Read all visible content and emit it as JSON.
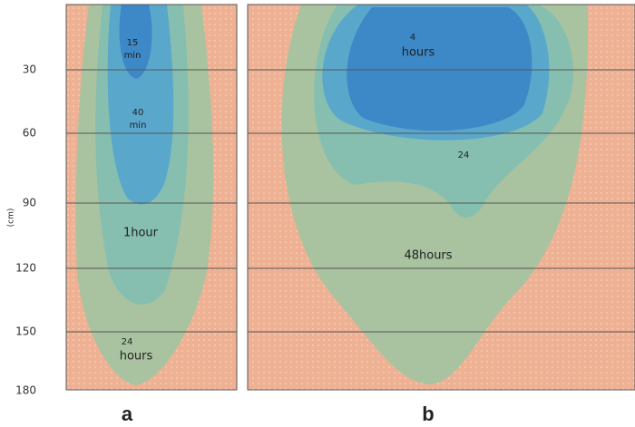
{
  "axis": {
    "unit": "(cm)",
    "ticks": [
      "30",
      "60",
      "90",
      "120",
      "150",
      "180"
    ]
  },
  "panels": [
    {
      "label": "a",
      "contours": [
        {
          "number": "15",
          "unit": "min"
        },
        {
          "number": "40",
          "unit": "min"
        },
        {
          "text": "1hour"
        },
        {
          "number": "24",
          "unit": "hours"
        }
      ]
    },
    {
      "label": "b",
      "contours": [
        {
          "number": "4",
          "unit": "hours"
        },
        {
          "text": "24"
        },
        {
          "text": "48hours"
        }
      ]
    }
  ]
}
